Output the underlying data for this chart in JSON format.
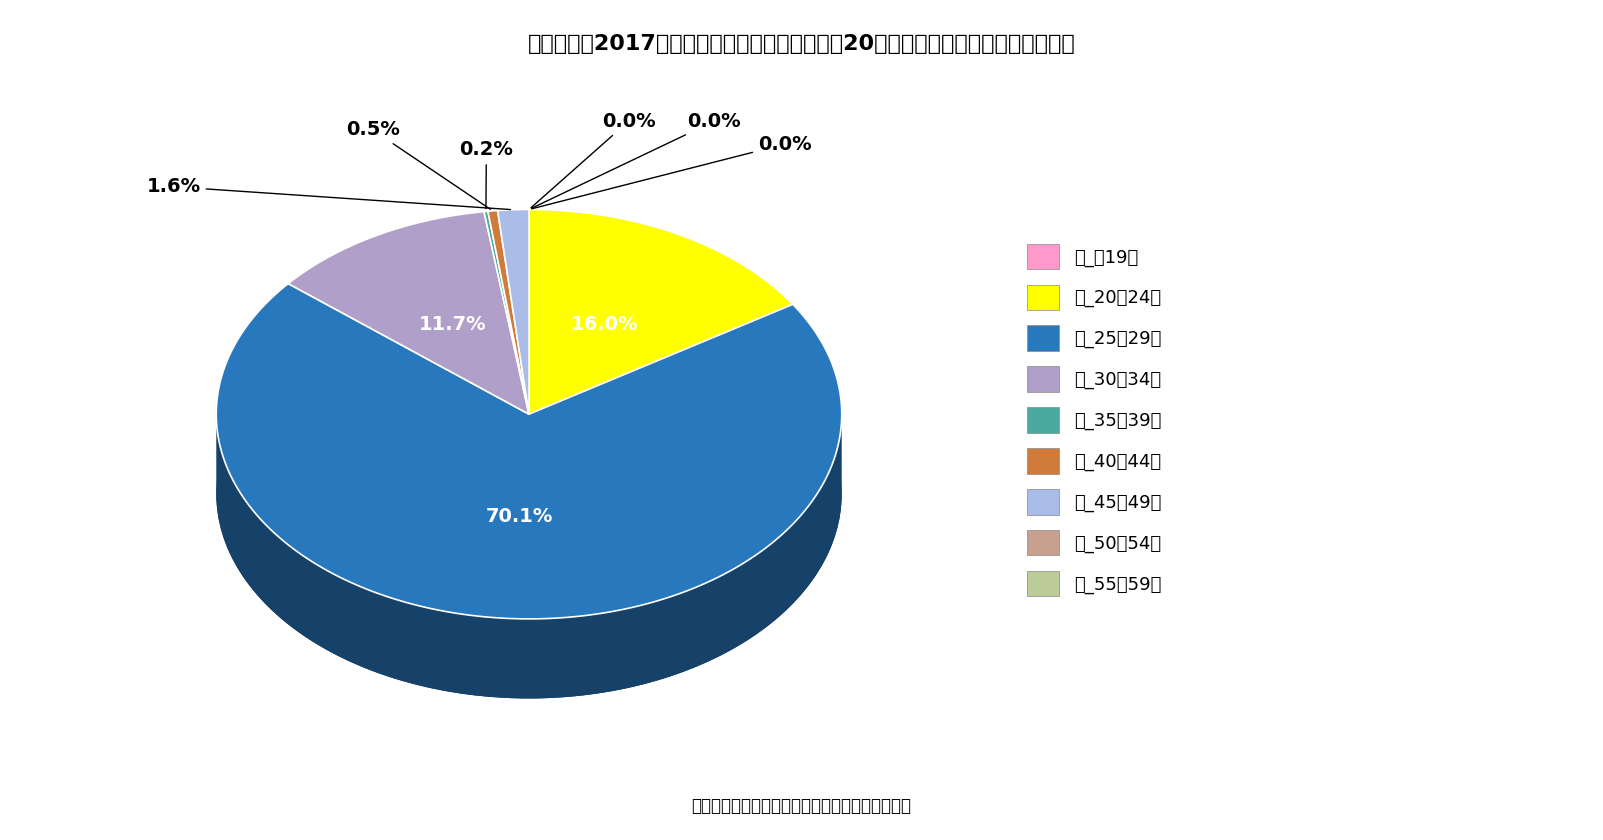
{
  "title": "》図表３「 2017年成婚男女の年齢組み合わせ／20代後半男性とその妻の年齢（％）",
  "title_raw": "【図表３】2017年成婚男女の年齢組み合わせ／20代後半男性とその妻の年齢（％）",
  "source": "資料）厚生労働省「人口動態調査」より筆者作成",
  "labels": [
    "妻_～19歳",
    "妻_20～24歳",
    "妻_25～29歳",
    "妻_30～34歳",
    "妻_35～39歳",
    "妻_40～44歳",
    "妻_45～49歳",
    "妻_50～54歳",
    "妻_55～59歳"
  ],
  "values": [
    0.0,
    16.0,
    70.1,
    11.7,
    0.2,
    0.5,
    1.6,
    0.0,
    0.0
  ],
  "colors": [
    "#FF99CC",
    "#FFFF00",
    "#2878BE",
    "#B09FC8",
    "#4BAAA0",
    "#D07B3A",
    "#AABDE8",
    "#C8A090",
    "#BBCC99"
  ],
  "pct_labels": [
    "0.0%",
    "16.0%",
    "70.1%",
    "11.7%",
    "0.2%",
    "0.5%",
    "1.6%",
    "0.0%",
    "0.0%"
  ],
  "background_color": "#FFFFFF",
  "title_fontsize": 16,
  "legend_fontsize": 13,
  "label_fontsize": 14
}
